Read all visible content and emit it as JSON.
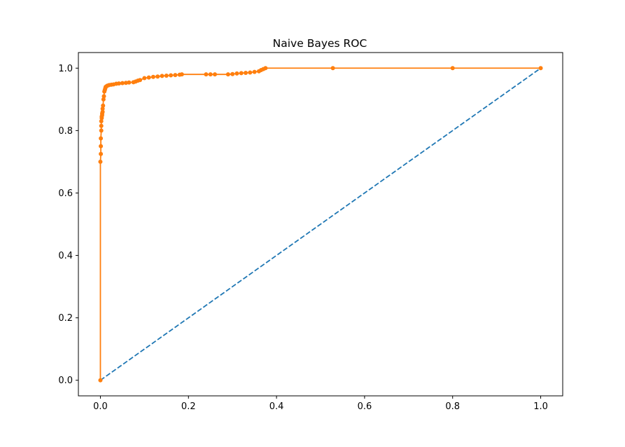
{
  "chart_data": {
    "type": "line",
    "title": "Naive Bayes ROC",
    "xlabel": "",
    "ylabel": "",
    "xlim": [
      -0.05,
      1.05
    ],
    "ylim": [
      -0.05,
      1.05
    ],
    "x_ticks": [
      "0.0",
      "0.2",
      "0.4",
      "0.6",
      "0.8",
      "1.0"
    ],
    "y_ticks": [
      "0.0",
      "0.2",
      "0.4",
      "0.6",
      "0.8",
      "1.0"
    ],
    "grid": false,
    "legend": "none",
    "series": [
      {
        "style": "dashed",
        "color": "#1f77b4",
        "markers": false,
        "x": [
          0.0,
          1.0
        ],
        "y": [
          0.0,
          1.0
        ]
      },
      {
        "style": "solid",
        "color": "#ff7f0e",
        "markers": true,
        "x": [
          0.0,
          0.0,
          0.001,
          0.001,
          0.001,
          0.002,
          0.002,
          0.002,
          0.003,
          0.003,
          0.004,
          0.004,
          0.005,
          0.005,
          0.006,
          0.007,
          0.008,
          0.009,
          0.01,
          0.011,
          0.012,
          0.014,
          0.016,
          0.02,
          0.025,
          0.03,
          0.036,
          0.042,
          0.05,
          0.058,
          0.065,
          0.075,
          0.08,
          0.085,
          0.09,
          0.1,
          0.11,
          0.12,
          0.13,
          0.14,
          0.15,
          0.16,
          0.17,
          0.18,
          0.185,
          0.24,
          0.25,
          0.26,
          0.29,
          0.3,
          0.31,
          0.32,
          0.33,
          0.34,
          0.35,
          0.36,
          0.365,
          0.37,
          0.375,
          0.528,
          0.8,
          1.0
        ],
        "y": [
          0.0,
          0.7,
          0.725,
          0.75,
          0.775,
          0.8,
          0.815,
          0.83,
          0.84,
          0.845,
          0.85,
          0.855,
          0.86,
          0.87,
          0.88,
          0.9,
          0.91,
          0.925,
          0.93,
          0.935,
          0.94,
          0.942,
          0.944,
          0.946,
          0.947,
          0.948,
          0.95,
          0.951,
          0.952,
          0.953,
          0.954,
          0.955,
          0.957,
          0.96,
          0.962,
          0.968,
          0.97,
          0.972,
          0.973,
          0.975,
          0.976,
          0.977,
          0.978,
          0.979,
          0.98,
          0.98,
          0.98,
          0.98,
          0.98,
          0.981,
          0.983,
          0.984,
          0.985,
          0.986,
          0.988,
          0.99,
          0.994,
          0.997,
          1.0,
          1.0,
          1.0,
          1.0
        ]
      }
    ]
  }
}
